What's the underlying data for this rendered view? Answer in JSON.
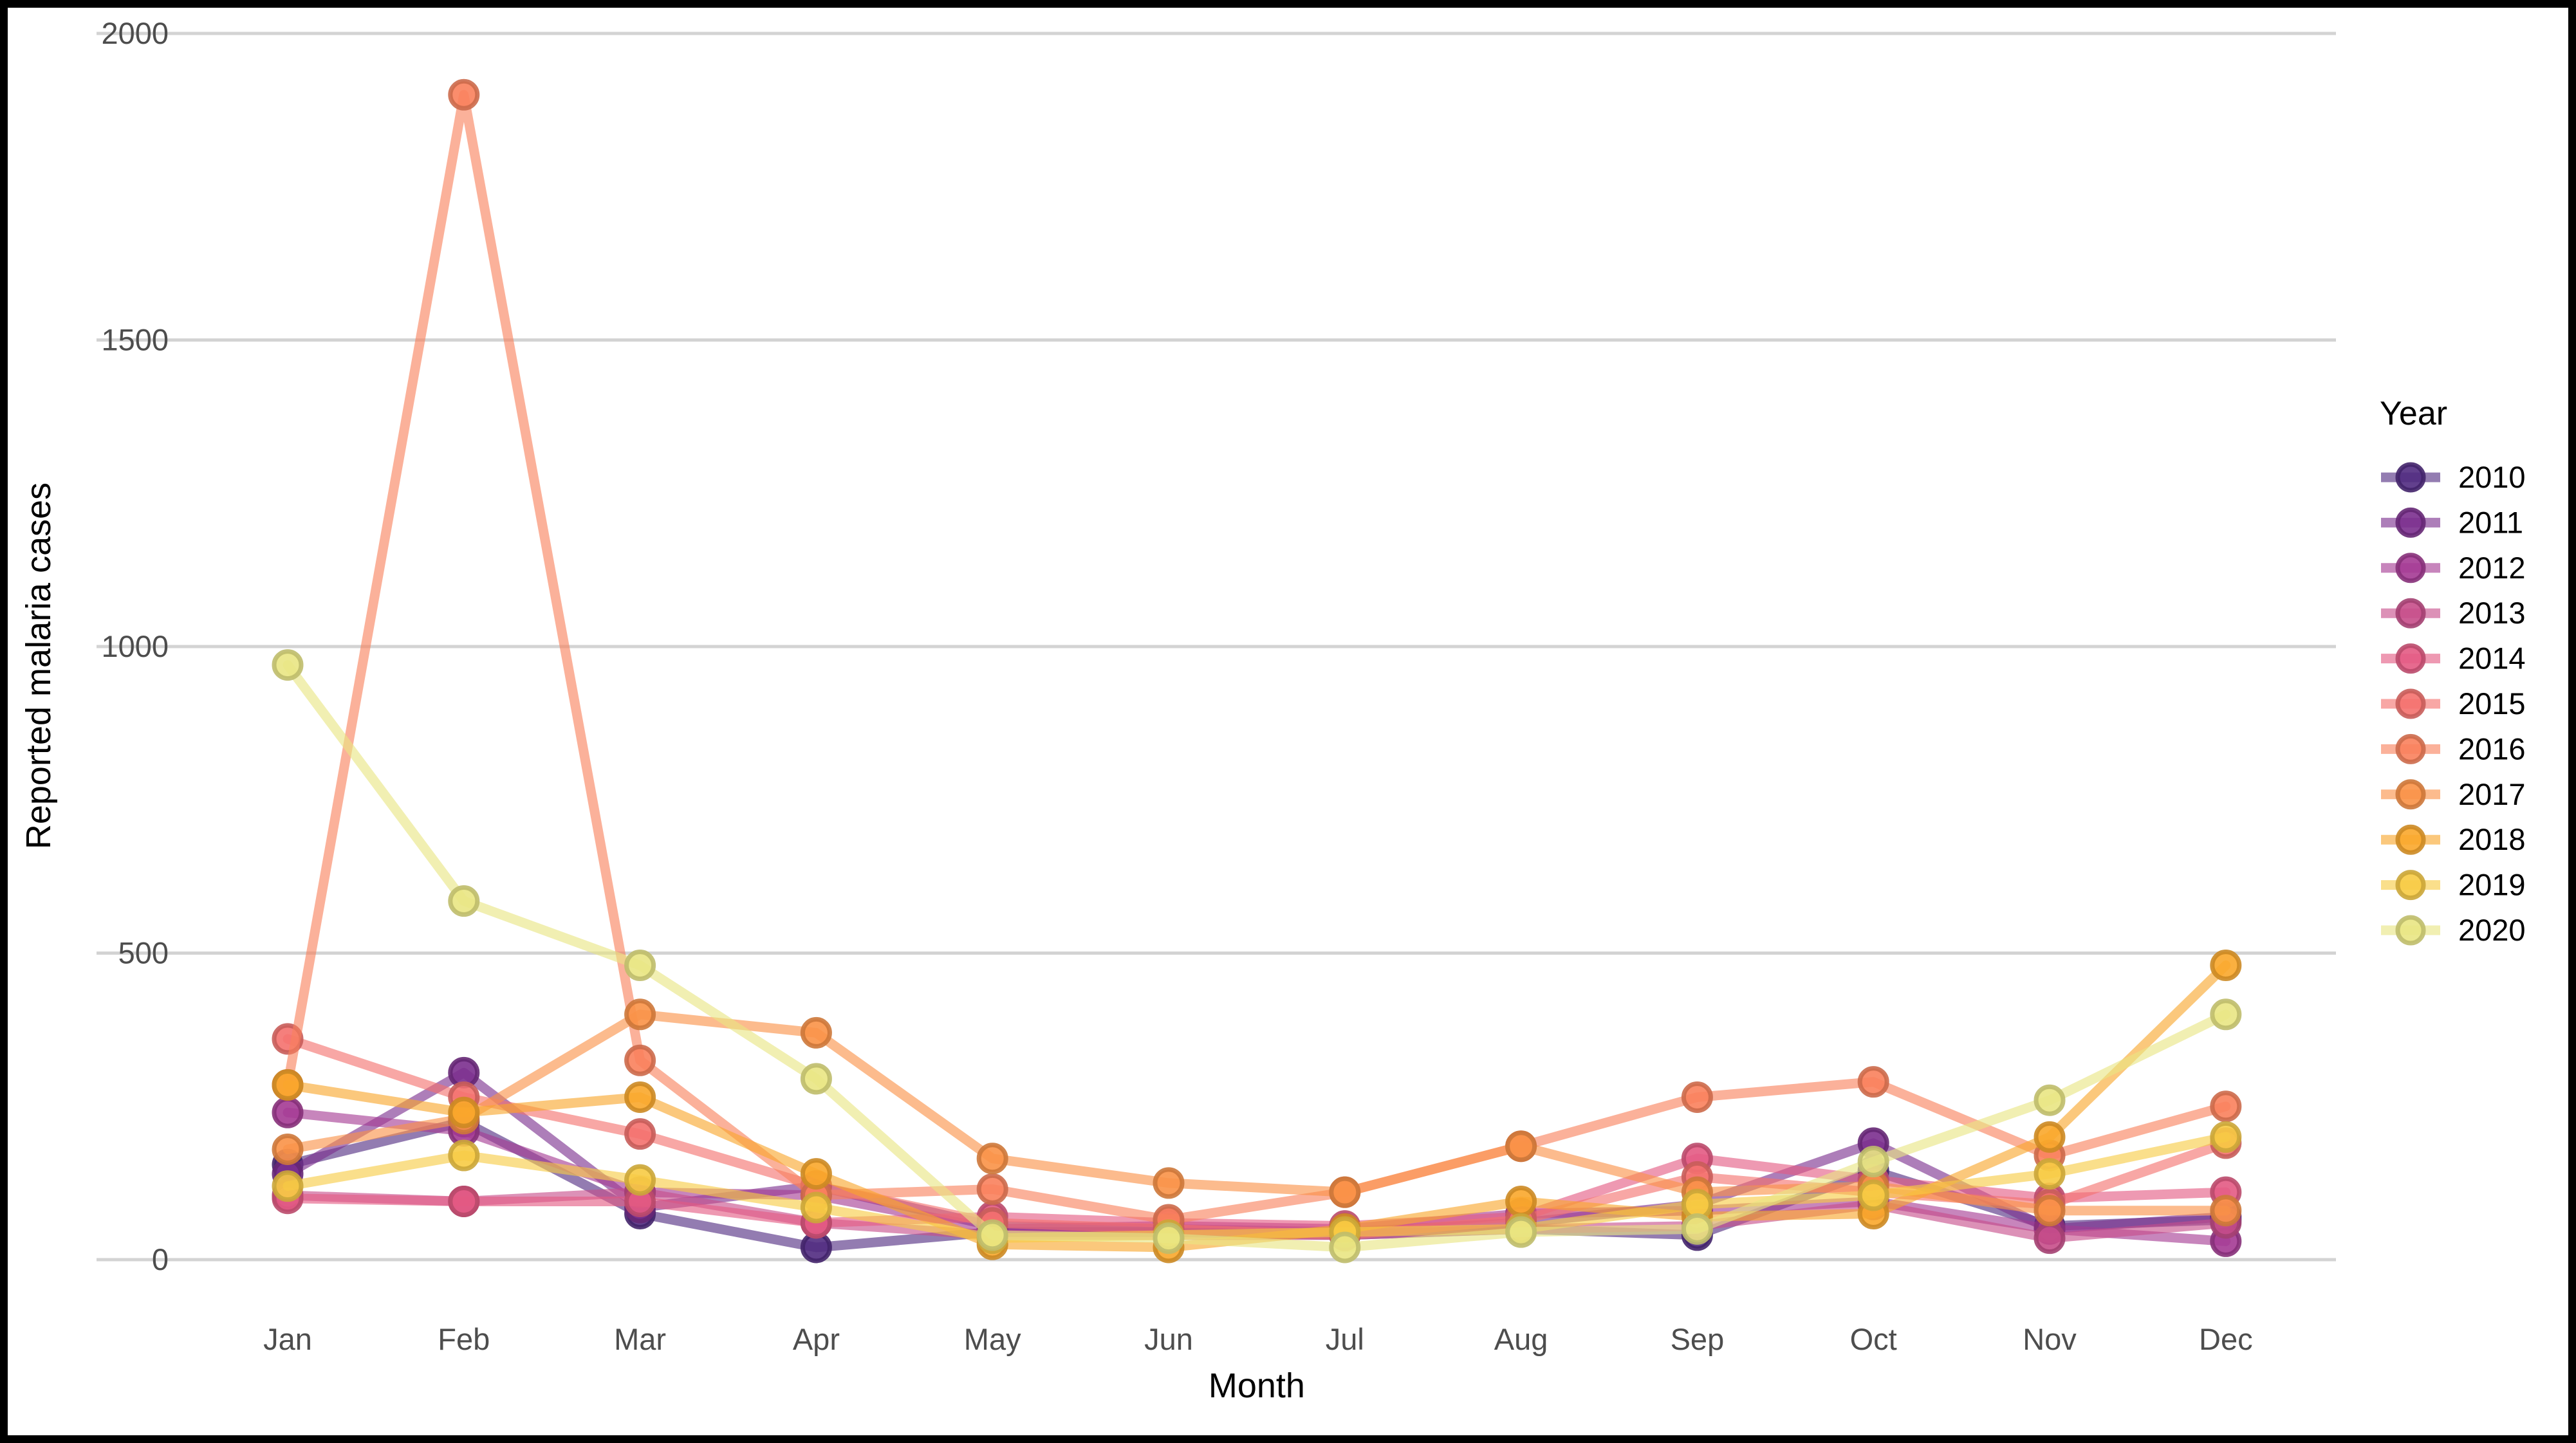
{
  "chart_data": {
    "type": "line",
    "title": "",
    "xlabel": "Month",
    "ylabel": "Reported malaria cases",
    "legend_title": "Year",
    "legend_position": "right",
    "grid": "horizontal-only",
    "background": "#ffffff",
    "border_color": "#000000",
    "gridline_color": "#d3d3d3",
    "tick_label_color": "#4d4d4d",
    "axis_title_color": "#000000",
    "categories": [
      "Jan",
      "Feb",
      "Mar",
      "Apr",
      "May",
      "Jun",
      "Jul",
      "Aug",
      "Sep",
      "Oct",
      "Nov",
      "Dec"
    ],
    "yticks": [
      0,
      500,
      1000,
      1500,
      2000
    ],
    "ylim": [
      0,
      2000
    ],
    "series": [
      {
        "name": "2010",
        "color": "#512B81",
        "values": [
          155,
          225,
          75,
          20,
          45,
          45,
          40,
          50,
          40,
          145,
          55,
          65
        ]
      },
      {
        "name": "2011",
        "color": "#7B2F8E",
        "values": [
          140,
          305,
          85,
          120,
          55,
          50,
          45,
          60,
          90,
          190,
          50,
          70
        ]
      },
      {
        "name": "2012",
        "color": "#A43A93",
        "values": [
          240,
          210,
          110,
          105,
          50,
          55,
          50,
          75,
          80,
          95,
          50,
          30
        ]
      },
      {
        "name": "2013",
        "color": "#C74E8A",
        "values": [
          105,
          95,
          110,
          60,
          40,
          40,
          40,
          50,
          55,
          90,
          35,
          60
        ]
      },
      {
        "name": "2014",
        "color": "#E35A83",
        "values": [
          100,
          95,
          95,
          60,
          70,
          60,
          55,
          70,
          165,
          130,
          100,
          110
        ]
      },
      {
        "name": "2015",
        "color": "#F4716E",
        "values": [
          360,
          265,
          205,
          120,
          60,
          50,
          40,
          65,
          135,
          110,
          90,
          190
        ]
      },
      {
        "name": "2016",
        "color": "#F9815C",
        "values": [
          285,
          1900,
          325,
          105,
          115,
          65,
          110,
          185,
          265,
          290,
          170,
          250
        ]
      },
      {
        "name": "2017",
        "color": "#FA9247",
        "values": [
          180,
          230,
          400,
          370,
          165,
          125,
          110,
          185,
          110,
          120,
          80,
          80
        ]
      },
      {
        "name": "2018",
        "color": "#F9A72B",
        "values": [
          285,
          240,
          265,
          140,
          25,
          20,
          50,
          95,
          70,
          75,
          200,
          480
        ]
      },
      {
        "name": "2019",
        "color": "#F7CB44",
        "values": [
          120,
          170,
          130,
          85,
          35,
          40,
          45,
          50,
          90,
          105,
          140,
          200
        ]
      },
      {
        "name": "2020",
        "color": "#E9E583",
        "values": [
          970,
          585,
          480,
          295,
          40,
          35,
          20,
          45,
          50,
          160,
          260,
          400
        ]
      }
    ]
  }
}
